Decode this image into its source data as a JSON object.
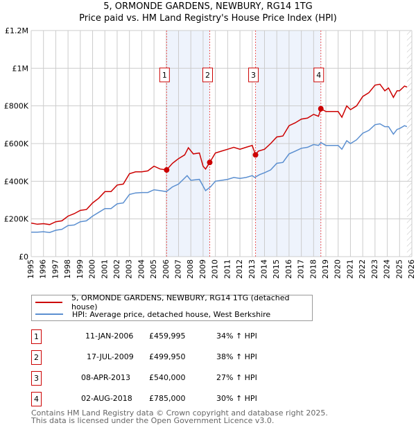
{
  "title": "5, ORMONDE GARDENS, NEWBURY, RG14 1TG",
  "subtitle": "Price paid vs. HM Land Registry's House Price Index (HPI)",
  "chart_data": {
    "type": "line",
    "xlim": [
      1995,
      2026
    ],
    "ylim": [
      0,
      1200000
    ],
    "yticks": [
      0,
      200000,
      400000,
      600000,
      800000,
      1000000,
      1200000
    ],
    "ytick_labels": [
      "£0",
      "£200K",
      "£400K",
      "£600K",
      "£800K",
      "£1M",
      "£1.2M"
    ],
    "xticks": [
      1995,
      1996,
      1997,
      1998,
      1999,
      2000,
      2001,
      2002,
      2003,
      2004,
      2005,
      2006,
      2007,
      2008,
      2009,
      2010,
      2011,
      2012,
      2013,
      2014,
      2015,
      2016,
      2017,
      2018,
      2019,
      2020,
      2021,
      2022,
      2023,
      2024,
      2025,
      2026
    ],
    "grid": true,
    "shaded_ranges": [
      [
        2006.03,
        2009.54
      ],
      [
        2013.27,
        2018.59
      ]
    ],
    "hatched_from": 2025.6,
    "colors": {
      "property": "#cc0000",
      "hpi": "#5b8fd0",
      "shade": "#eef3fc"
    },
    "series": [
      {
        "name": "5, ORMONDE GARDENS, NEWBURY, RG14 1TG (detached house)",
        "color": "#cc0000",
        "x": [
          1995,
          1995.5,
          1996,
          1996.5,
          1997,
          1997.5,
          1998,
          1998.5,
          1999,
          1999.5,
          2000,
          2000.5,
          2001,
          2001.5,
          2002,
          2002.5,
          2003,
          2003.5,
          2004,
          2004.5,
          2005,
          2005.5,
          2006.03,
          2006.5,
          2007,
          2007.5,
          2007.8,
          2008.2,
          2008.7,
          2009,
          2009.2,
          2009.54,
          2010,
          2010.5,
          2011,
          2011.5,
          2012,
          2012.5,
          2013,
          2013.27,
          2013.5,
          2014,
          2014.5,
          2015,
          2015.5,
          2016,
          2016.5,
          2017,
          2017.5,
          2018,
          2018.4,
          2018.59,
          2019,
          2019.5,
          2020,
          2020.3,
          2020.7,
          2021,
          2021.5,
          2022,
          2022.5,
          2023,
          2023.4,
          2023.8,
          2024.1,
          2024.5,
          2024.8,
          2025,
          2025.4,
          2025.6
        ],
        "y": [
          178000,
          172000,
          175000,
          170000,
          185000,
          190000,
          215000,
          228000,
          245000,
          250000,
          285000,
          310000,
          345000,
          345000,
          380000,
          385000,
          440000,
          450000,
          450000,
          455000,
          480000,
          465000,
          459995,
          495000,
          520000,
          540000,
          578000,
          545000,
          550000,
          480000,
          465000,
          499950,
          550000,
          560000,
          570000,
          580000,
          570000,
          580000,
          590000,
          540000,
          560000,
          570000,
          600000,
          635000,
          640000,
          695000,
          710000,
          730000,
          735000,
          755000,
          745000,
          785000,
          770000,
          770000,
          770000,
          740000,
          800000,
          780000,
          800000,
          850000,
          870000,
          910000,
          915000,
          880000,
          895000,
          845000,
          880000,
          880000,
          905000,
          900000
        ]
      },
      {
        "name": "HPI: Average price, detached house, West Berkshire",
        "color": "#5b8fd0",
        "x": [
          1995,
          1995.5,
          1996,
          1996.5,
          1997,
          1997.5,
          1998,
          1998.5,
          1999,
          1999.5,
          2000,
          2000.5,
          2001,
          2001.5,
          2002,
          2002.5,
          2003,
          2003.5,
          2004,
          2004.5,
          2005,
          2005.5,
          2006,
          2006.5,
          2007,
          2007.7,
          2008,
          2008.7,
          2009.2,
          2009.6,
          2010,
          2010.5,
          2011,
          2011.5,
          2012,
          2012.5,
          2013,
          2013.2,
          2013.6,
          2014,
          2014.5,
          2015,
          2015.5,
          2016,
          2016.5,
          2017,
          2017.5,
          2018,
          2018.4,
          2018.6,
          2019,
          2019.5,
          2020,
          2020.3,
          2020.7,
          2021,
          2021.5,
          2022,
          2022.5,
          2023,
          2023.4,
          2023.8,
          2024.1,
          2024.5,
          2024.8,
          2025,
          2025.4,
          2025.6
        ],
        "y": [
          130000,
          130000,
          132000,
          128000,
          140000,
          145000,
          165000,
          168000,
          185000,
          190000,
          215000,
          235000,
          255000,
          255000,
          280000,
          285000,
          330000,
          338000,
          340000,
          340000,
          355000,
          350000,
          345000,
          370000,
          385000,
          430000,
          405000,
          410000,
          350000,
          370000,
          400000,
          405000,
          410000,
          420000,
          415000,
          420000,
          430000,
          420000,
          435000,
          445000,
          460000,
          495000,
          500000,
          545000,
          560000,
          575000,
          580000,
          595000,
          590000,
          605000,
          590000,
          590000,
          590000,
          570000,
          615000,
          600000,
          620000,
          655000,
          670000,
          700000,
          705000,
          690000,
          690000,
          650000,
          675000,
          680000,
          695000,
          690000
        ]
      }
    ],
    "sales": [
      {
        "label": "1",
        "date": "11-JAN-2006",
        "x": 2006.03,
        "price": "£459,995",
        "value": 459995,
        "hpi": "34% ↑ HPI"
      },
      {
        "label": "2",
        "date": "17-JUL-2009",
        "x": 2009.54,
        "price": "£499,950",
        "value": 499950,
        "hpi": "38% ↑ HPI"
      },
      {
        "label": "3",
        "date": "08-APR-2013",
        "x": 2013.27,
        "price": "£540,000",
        "value": 540000,
        "hpi": "27% ↑ HPI"
      },
      {
        "label": "4",
        "date": "02-AUG-2018",
        "x": 2018.59,
        "price": "£785,000",
        "value": 785000,
        "hpi": "30% ↑ HPI"
      }
    ]
  },
  "legend": {
    "property": "5, ORMONDE GARDENS, NEWBURY, RG14 1TG (detached house)",
    "hpi": "HPI: Average price, detached house, West Berkshire"
  },
  "footer": {
    "line1": "Contains HM Land Registry data © Crown copyright and database right 2025.",
    "line2": "This data is licensed under the Open Government Licence v3.0."
  }
}
